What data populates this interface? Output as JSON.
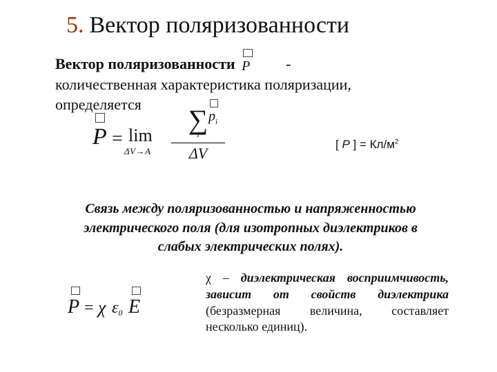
{
  "title": {
    "num": "5.",
    "text": "Вектор поляризованности"
  },
  "para1": {
    "bold_lead": "Вектор поляризованности",
    "dash": "-",
    "rest1": "количественная характеристика поляризации,",
    "rest2": "определяется"
  },
  "formula_main": {
    "P": "P",
    "eq": "=",
    "lim": "lim",
    "lim_sub": "ΔV→A",
    "sigma": "∑",
    "sigma_sub": "i",
    "p": "p",
    "p_sub": "i",
    "denom": "ΔV"
  },
  "units": {
    "lb": "[",
    "sym": "P",
    "rb": "]",
    "eq": " = ",
    "unit": "Кл/м",
    "pow": "2"
  },
  "middle": {
    "l1": "Связь между поляризованностью и напряженностью",
    "l2": "электрического поля (для изотропных диэлектриков в",
    "l3": "слабых электрических полях)."
  },
  "formula2": {
    "P": "P",
    "eq": "=",
    "chi": "χ",
    "eps": "ε",
    "eps_sub": "0",
    "E": "E"
  },
  "chi_para": {
    "chi": "χ",
    "dash": " – ",
    "bold_it": "диэлектрическая восприимчивость, зависит от свойств диэлектрика",
    "rest": " (безразмерная величина, составляет несколько единиц)."
  },
  "colors": {
    "accent": "#993300",
    "text": "#111111",
    "bg": "#ffffff"
  }
}
